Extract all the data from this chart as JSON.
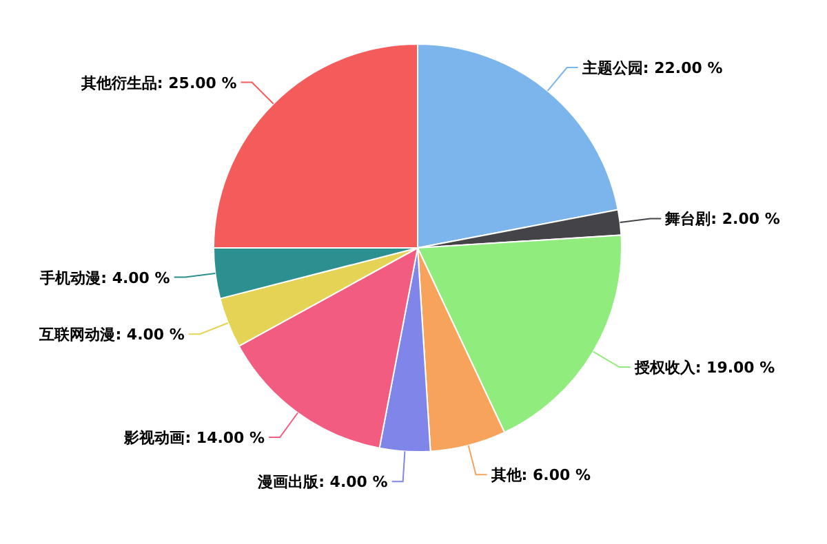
{
  "chart_data": {
    "type": "pie",
    "categories": [
      "主题公园",
      "舞台剧",
      "授权收入",
      "其他",
      "漫画出版",
      "影视动画",
      "互联网动漫",
      "手机动漫",
      "其他衍生品"
    ],
    "values": [
      22,
      2,
      19,
      6,
      4,
      14,
      4,
      4,
      25
    ],
    "colors": [
      "#7cb5ec",
      "#434348",
      "#90ed7d",
      "#f7a35c",
      "#8085e9",
      "#f15c80",
      "#e4d354",
      "#2b908f",
      "#f45b5b"
    ],
    "value_labels": [
      "22.00 %",
      "2.00 %",
      "19.00 %",
      "6.00 %",
      "4.00 %",
      "14.00 %",
      "4.00 %",
      "4.00 %",
      "25.00 %"
    ]
  }
}
